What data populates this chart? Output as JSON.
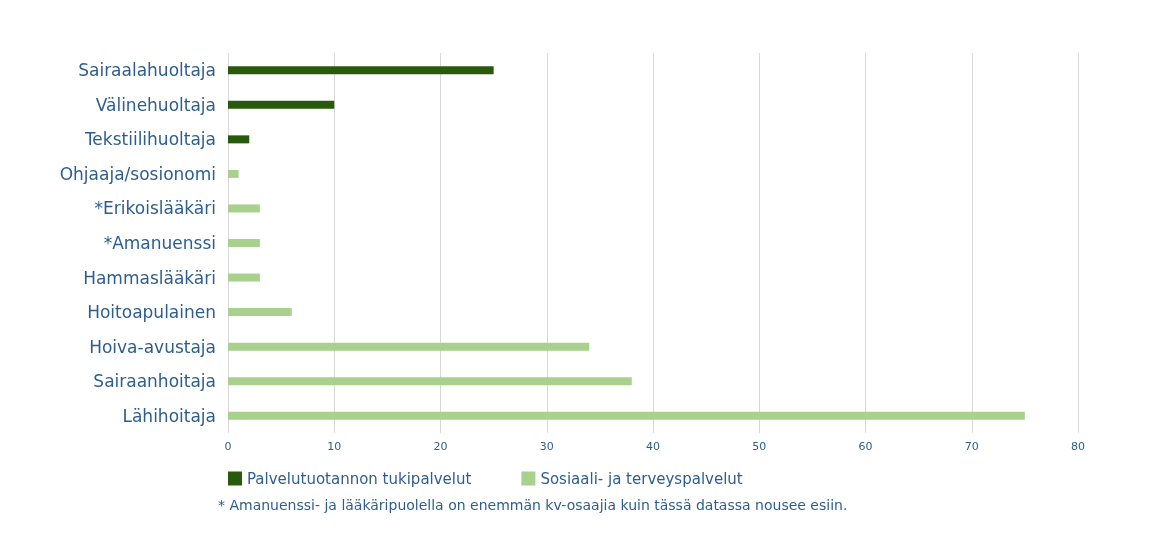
{
  "chart_data": {
    "type": "bar",
    "orientation": "horizontal",
    "categories": [
      "Sairaalahuoltaja",
      "Välinehuoltaja",
      "Tekstiilihuoltaja",
      "Ohjaaja/sosionomi",
      "*Erikoislääkäri",
      "*Amanuenssi",
      "Hammaslääkäri",
      "Hoitoapulainen",
      "Hoiva-avustaja",
      "Sairaanhoitaja",
      "Lähihoitaja"
    ],
    "series": [
      {
        "name": "Palvelutuotannon tukipalvelut",
        "color": "#275a0c",
        "values": [
          25,
          10,
          2,
          null,
          null,
          null,
          null,
          null,
          null,
          null,
          null
        ]
      },
      {
        "name": "Sosiaali- ja terveyspalvelut",
        "color": "#a9d18e",
        "values": [
          null,
          null,
          null,
          1,
          3,
          3,
          3,
          6,
          34,
          38,
          75
        ]
      }
    ],
    "xlim": [
      0,
      80
    ],
    "xticks": [
      0,
      10,
      20,
      30,
      40,
      50,
      60,
      70,
      80
    ],
    "grid": "x",
    "legend": "bottom left",
    "annotations": [
      "* Amanuenssi- ja lääkäripuolella on enemmän kv-osaajia kuin tässä datassa nousee esiin."
    ]
  }
}
